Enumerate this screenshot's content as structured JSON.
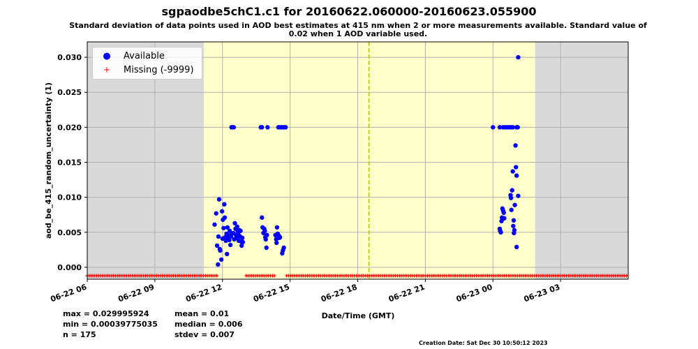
{
  "header": {
    "title": "sgpaodbe5chC1.c1 for 20160622.060000-20160623.055900",
    "subtitle_line1": "Standard deviation of data points used in AOD best estimates at 415 nm when 2 or more measurements available. Standard value of",
    "subtitle_line2": "0.02 when 1 AOD variable used."
  },
  "stats": {
    "max": "max = 0.029995924",
    "min": "min = 0.00039775035",
    "n": "n = 175",
    "mean": "mean = 0.01",
    "median": "median = 0.006",
    "stdev": "stdev = 0.007"
  },
  "footer": {
    "creation_date": "Creation Date: Sat Dec 30 10:50:12 2023"
  },
  "legend": {
    "available_label": "Available",
    "missing_label": "Missing (-9999)"
  },
  "colors": {
    "available": "#0000ff",
    "missing": "#ff0000",
    "day_shade": "#ffffcc",
    "night_shade": "#d9d9d9",
    "grid": "#b0b0b0",
    "marker_line": "#bbbb00"
  },
  "chart_data": {
    "type": "scatter",
    "xlabel": "Date/Time (GMT)",
    "ylabel": "aod_be_415_random_uncertainty (1)",
    "xlim": [
      0,
      24
    ],
    "ylim": [
      -0.0017,
      0.0322
    ],
    "x_unit": "hours since 2016-06-22 06:00 GMT",
    "xticks": [
      {
        "x": 0,
        "label": "06-22 06"
      },
      {
        "x": 3,
        "label": "06-22 09"
      },
      {
        "x": 6,
        "label": "06-22 12"
      },
      {
        "x": 9,
        "label": "06-22 15"
      },
      {
        "x": 12,
        "label": "06-22 18"
      },
      {
        "x": 15,
        "label": "06-22 21"
      },
      {
        "x": 18,
        "label": "06-23 00"
      },
      {
        "x": 21,
        "label": "06-23 03"
      }
    ],
    "yticks": [
      {
        "y": 0.0,
        "label": "0.000"
      },
      {
        "y": 0.005,
        "label": "0.005"
      },
      {
        "y": 0.01,
        "label": "0.010"
      },
      {
        "y": 0.015,
        "label": "0.015"
      },
      {
        "y": 0.02,
        "label": "0.020"
      },
      {
        "y": 0.025,
        "label": "0.025"
      },
      {
        "y": 0.03,
        "label": "0.030"
      }
    ],
    "grid": true,
    "day_period": [
      5.17,
      19.87
    ],
    "reference_line_x": 12.5,
    "missing_value_plot_y": -0.0012,
    "missing_ranges": [
      [
        0,
        5.8
      ],
      [
        7.05,
        7.75
      ],
      [
        7.8,
        8.3
      ],
      [
        8.85,
        24
      ]
    ],
    "available_series": [
      [
        5.65,
        0.0061
      ],
      [
        5.72,
        0.0077
      ],
      [
        5.76,
        0.0031
      ],
      [
        5.8,
        0.0004
      ],
      [
        5.82,
        0.0044
      ],
      [
        5.85,
        0.0097
      ],
      [
        5.88,
        0.0026
      ],
      [
        5.9,
        0.0024
      ],
      [
        5.95,
        0.0011
      ],
      [
        5.98,
        0.008
      ],
      [
        6.0,
        0.0041
      ],
      [
        6.02,
        0.0068
      ],
      [
        6.05,
        0.0056
      ],
      [
        6.08,
        0.009
      ],
      [
        6.1,
        0.0071
      ],
      [
        6.12,
        0.0043
      ],
      [
        6.15,
        0.0038
      ],
      [
        6.18,
        0.0048
      ],
      [
        6.2,
        0.0019
      ],
      [
        6.22,
        0.0057
      ],
      [
        6.25,
        0.0046
      ],
      [
        6.28,
        0.0042
      ],
      [
        6.3,
        0.0039
      ],
      [
        6.32,
        0.0052
      ],
      [
        6.35,
        0.0032
      ],
      [
        6.38,
        0.0044
      ],
      [
        6.4,
        0.02
      ],
      [
        6.42,
        0.0048
      ],
      [
        6.45,
        0.02
      ],
      [
        6.48,
        0.0049
      ],
      [
        6.5,
        0.02
      ],
      [
        6.52,
        0.004
      ],
      [
        6.55,
        0.0063
      ],
      [
        6.58,
        0.0055
      ],
      [
        6.6,
        0.0046
      ],
      [
        6.62,
        0.0042
      ],
      [
        6.65,
        0.0058
      ],
      [
        6.68,
        0.0051
      ],
      [
        6.7,
        0.0047
      ],
      [
        6.72,
        0.0038
      ],
      [
        6.75,
        0.0053
      ],
      [
        6.78,
        0.0044
      ],
      [
        6.8,
        0.0052
      ],
      [
        6.82,
        0.0037
      ],
      [
        6.85,
        0.0031
      ],
      [
        6.88,
        0.0042
      ],
      [
        6.9,
        0.0036
      ],
      [
        7.75,
        0.0071
      ],
      [
        7.78,
        0.0057
      ],
      [
        7.82,
        0.0049
      ],
      [
        7.85,
        0.0055
      ],
      [
        7.88,
        0.0052
      ],
      [
        7.9,
        0.0043
      ],
      [
        7.92,
        0.004
      ],
      [
        7.95,
        0.0028
      ],
      [
        7.97,
        0.0046
      ],
      [
        7.7,
        0.02
      ],
      [
        7.75,
        0.02
      ],
      [
        8.0,
        0.02
      ],
      [
        8.35,
        0.0046
      ],
      [
        8.38,
        0.004
      ],
      [
        8.4,
        0.0035
      ],
      [
        8.42,
        0.0057
      ],
      [
        8.45,
        0.0048
      ],
      [
        8.5,
        0.0045
      ],
      [
        8.52,
        0.0042
      ],
      [
        8.55,
        0.0043
      ],
      [
        8.48,
        0.02
      ],
      [
        8.55,
        0.02
      ],
      [
        8.62,
        0.02
      ],
      [
        8.7,
        0.02
      ],
      [
        8.75,
        0.02
      ],
      [
        8.8,
        0.02
      ],
      [
        8.65,
        0.002
      ],
      [
        8.68,
        0.0024
      ],
      [
        8.72,
        0.0028
      ],
      [
        18.0,
        0.02
      ],
      [
        18.3,
        0.02
      ],
      [
        18.45,
        0.02
      ],
      [
        18.55,
        0.02
      ],
      [
        18.62,
        0.02
      ],
      [
        18.7,
        0.02
      ],
      [
        18.78,
        0.02
      ],
      [
        18.82,
        0.02
      ],
      [
        18.88,
        0.02
      ],
      [
        19.05,
        0.02
      ],
      [
        19.1,
        0.02
      ],
      [
        18.3,
        0.0055
      ],
      [
        18.32,
        0.0052
      ],
      [
        18.35,
        0.005
      ],
      [
        18.38,
        0.0066
      ],
      [
        18.4,
        0.0071
      ],
      [
        18.42,
        0.0084
      ],
      [
        18.45,
        0.0081
      ],
      [
        18.48,
        0.0078
      ],
      [
        18.5,
        0.007
      ],
      [
        18.78,
        0.0103
      ],
      [
        18.8,
        0.0099
      ],
      [
        18.82,
        0.0082
      ],
      [
        18.85,
        0.011
      ],
      [
        18.88,
        0.0137
      ],
      [
        18.9,
        0.0059
      ],
      [
        18.92,
        0.0067
      ],
      [
        18.95,
        0.0053
      ],
      [
        18.97,
        0.0089
      ],
      [
        19.0,
        0.0174
      ],
      [
        19.02,
        0.0143
      ],
      [
        19.05,
        0.0131
      ],
      [
        19.05,
        0.0029
      ],
      [
        19.12,
        0.0102
      ],
      [
        19.12,
        0.03
      ],
      [
        18.93,
        0.0049
      ]
    ]
  }
}
